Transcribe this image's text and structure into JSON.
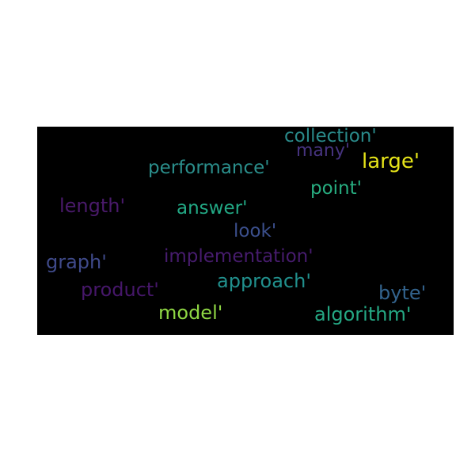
{
  "word_cloud": {
    "words": [
      {
        "id": "collection",
        "text": "collection'",
        "color": "#2a8a8a"
      },
      {
        "id": "many",
        "text": "many'",
        "color": "#46337f"
      },
      {
        "id": "large",
        "text": "large'",
        "color": "#e6e419"
      },
      {
        "id": "performance",
        "text": "performance'",
        "color": "#2b8f8c"
      },
      {
        "id": "point",
        "text": "point'",
        "color": "#27ad80"
      },
      {
        "id": "length",
        "text": "length'",
        "color": "#4a1a6b"
      },
      {
        "id": "answer",
        "text": "answer'",
        "color": "#22a884"
      },
      {
        "id": "look",
        "text": "look'",
        "color": "#3b4f8c"
      },
      {
        "id": "graph",
        "text": "graph'",
        "color": "#3f4a8a"
      },
      {
        "id": "implementation",
        "text": "implementation'",
        "color": "#471c6e"
      },
      {
        "id": "product",
        "text": "product'",
        "color": "#46176a"
      },
      {
        "id": "approach",
        "text": "approach'",
        "color": "#21908d"
      },
      {
        "id": "byte",
        "text": "byte'",
        "color": "#33638d"
      },
      {
        "id": "model",
        "text": "model'",
        "color": "#8fd744"
      },
      {
        "id": "algorithm",
        "text": "algorithm'",
        "color": "#25a884"
      }
    ]
  }
}
